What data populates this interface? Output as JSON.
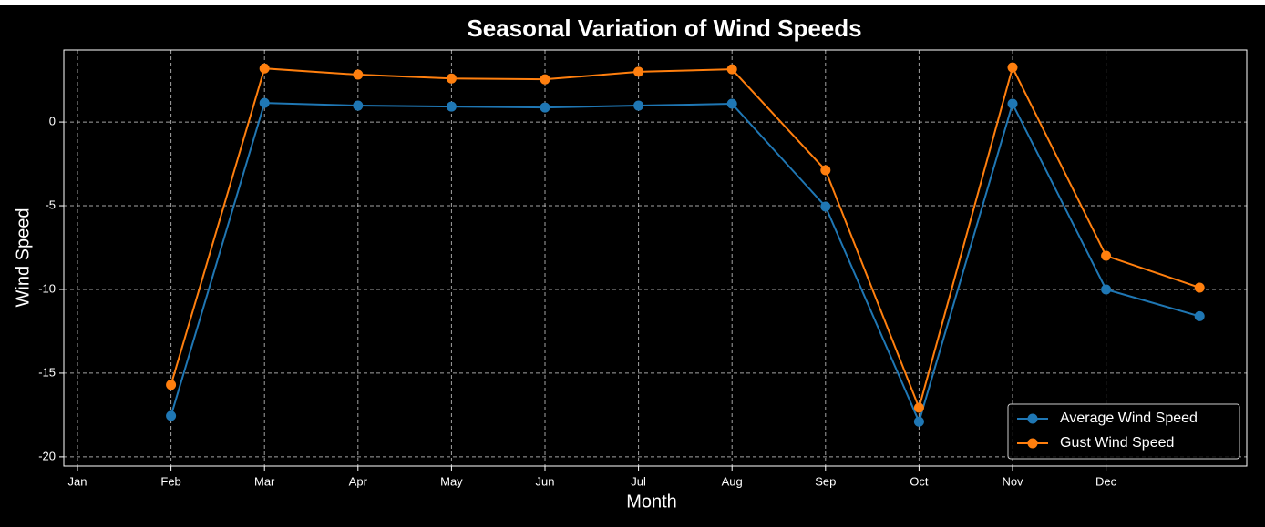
{
  "chart_data": {
    "type": "line",
    "title": "Seasonal Variation of Wind Speeds",
    "x_label": "Month",
    "y_label": "Wind Speed",
    "categories": [
      "Jan",
      "Feb",
      "Mar",
      "Apr",
      "May",
      "Jun",
      "Jul",
      "Aug",
      "Sep",
      "Oct",
      "Nov",
      "Dec",
      null
    ],
    "series": [
      {
        "name": "Average Wind Speed",
        "color": "#1f77b4",
        "values": [
          null,
          -17.55,
          1.14,
          0.98,
          0.92,
          0.87,
          0.98,
          1.09,
          -5.05,
          -17.9,
          1.09,
          -10.0,
          -11.6
        ]
      },
      {
        "name": "Gust Wind Speed",
        "color": "#ff7f0e",
        "values": [
          null,
          -15.7,
          3.2,
          2.83,
          2.6,
          2.55,
          3.0,
          3.15,
          -2.88,
          -17.07,
          3.26,
          -7.99,
          -9.89
        ]
      }
    ],
    "ylim": [
      -20.55,
      4.3
    ],
    "yticks": [
      -20,
      -15,
      -10,
      -5,
      0
    ],
    "grid": true,
    "legend": "lower right"
  }
}
